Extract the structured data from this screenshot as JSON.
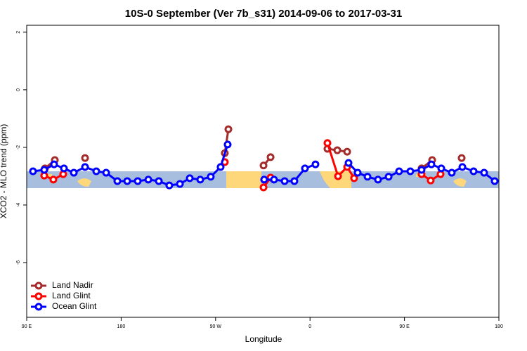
{
  "chart_data": {
    "type": "line",
    "title": "10S-0 September (Ver 7b_s31)   2014-09-06 to 2017-03-31",
    "x_label": "Longitude",
    "y_label": "XCO2 - MLO trend (ppm)",
    "xlim": [
      90,
      540
    ],
    "xticks": [
      {
        "value": 90,
        "label": "90 E"
      },
      180,
      {
        "value": 270,
        "label": "90 W"
      },
      {
        "value": 360,
        "label": "0"
      },
      {
        "value": 450,
        "label": "90 E"
      },
      {
        "value": 540,
        "label": "180"
      }
    ],
    "ylim": [
      -7.9,
      2.24
    ],
    "yticks": [
      -6,
      -4,
      -2,
      0,
      2
    ],
    "legend": "bottom-left",
    "series": [
      {
        "name": "Land Nadir",
        "color": "#a52a2a",
        "x": [
          107.4,
          116.8,
          130,
          145.6,
          200,
          278.8,
          282.2,
          300,
          315.7,
          322.4,
          350,
          376.6,
          386,
          395.4,
          430,
          466.3,
          476.4,
          490,
          504.5
        ],
        "values": [
          -2.73,
          -2.44,
          null,
          -2.37,
          null,
          -2.2,
          -1.37,
          null,
          -2.63,
          -2.34,
          null,
          -2.05,
          -2.1,
          -2.15,
          null,
          -2.73,
          -2.44,
          null,
          -2.37
        ]
      },
      {
        "name": "Land Glint",
        "color": "#ff0000",
        "x": [
          106.7,
          115.4,
          124.8,
          200,
          278.8,
          300,
          315.7,
          322.4,
          350,
          376.6,
          386.7,
          395.4,
          402,
          430,
          466.3,
          475,
          484.4
        ],
        "values": [
          -2.98,
          -3.12,
          -2.93,
          null,
          -2.51,
          null,
          -3.39,
          -3.05,
          null,
          -1.85,
          -3.0,
          -2.68,
          -3.07,
          null,
          -2.93,
          -3.15,
          -2.93
        ]
      },
      {
        "name": "Ocean Glint",
        "color": "#0000ff",
        "x": [
          96,
          106.7,
          116.1,
          125.5,
          134.9,
          145.6,
          156.3,
          165.7,
          176.4,
          185.8,
          195.8,
          205.9,
          215.9,
          225.9,
          236,
          245.4,
          255.4,
          265.4,
          274.8,
          281.5,
          300,
          316.3,
          325.7,
          335.8,
          345.1,
          355.2,
          365.2,
          380,
          396.7,
          405.4,
          414.8,
          424.8,
          434.9,
          444.9,
          455.6,
          466.3,
          475.7,
          485.1,
          495.1,
          505.2,
          515.9,
          525.9,
          536
        ],
        "values": [
          -2.83,
          -2.78,
          -2.59,
          -2.73,
          -2.88,
          -2.68,
          -2.83,
          -2.88,
          -3.17,
          -3.17,
          -3.17,
          -3.12,
          -3.17,
          -3.32,
          -3.27,
          -3.07,
          -3.12,
          -3.02,
          -2.68,
          -1.9,
          null,
          -3.12,
          -3.12,
          -3.17,
          -3.17,
          -2.73,
          -2.59,
          null,
          -2.54,
          -2.88,
          -3.02,
          -3.12,
          -3.02,
          -2.83,
          -2.83,
          -2.78,
          -2.59,
          -2.73,
          -2.88,
          -2.68,
          -2.83,
          -2.88,
          -3.17
        ]
      }
    ]
  }
}
